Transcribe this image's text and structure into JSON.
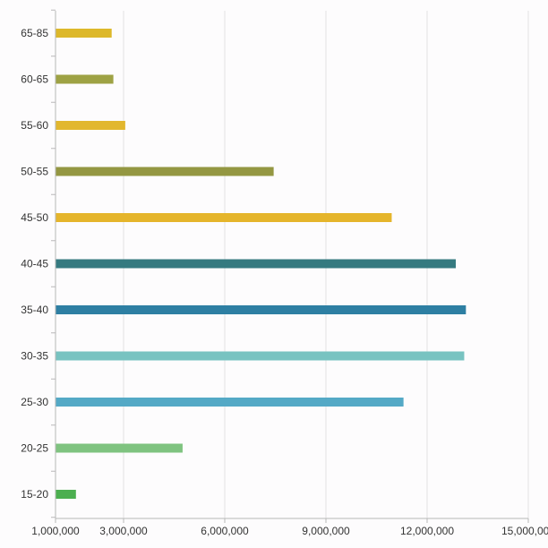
{
  "chart_data": {
    "type": "bar",
    "orientation": "horizontal",
    "title": "",
    "xlabel": "",
    "ylabel": "",
    "categories": [
      "15-20",
      "20-25",
      "25-30",
      "30-35",
      "35-40",
      "40-45",
      "45-50",
      "50-55",
      "55-60",
      "60-65",
      "65-85"
    ],
    "values": [
      1600000,
      4750000,
      11300000,
      13100000,
      13150000,
      12850000,
      10950000,
      7450000,
      3050000,
      2700000,
      2650000
    ],
    "colors": [
      "#4caf50",
      "#7fc380",
      "#54a9c6",
      "#78c3c1",
      "#2e7fa3",
      "#357a80",
      "#e5b52b",
      "#949742",
      "#e2b72e",
      "#9ea244",
      "#ddb82a"
    ],
    "xlim": [
      1000000,
      15000000
    ],
    "x_ticks": [
      1000000,
      3000000,
      6000000,
      9000000,
      12000000,
      15000000
    ],
    "x_tick_labels": [
      "1,000,000",
      "3,000,000",
      "6,000,000",
      "9,000,000",
      "12,000,000",
      "15,000,000"
    ],
    "grid": true,
    "legend": "none"
  }
}
